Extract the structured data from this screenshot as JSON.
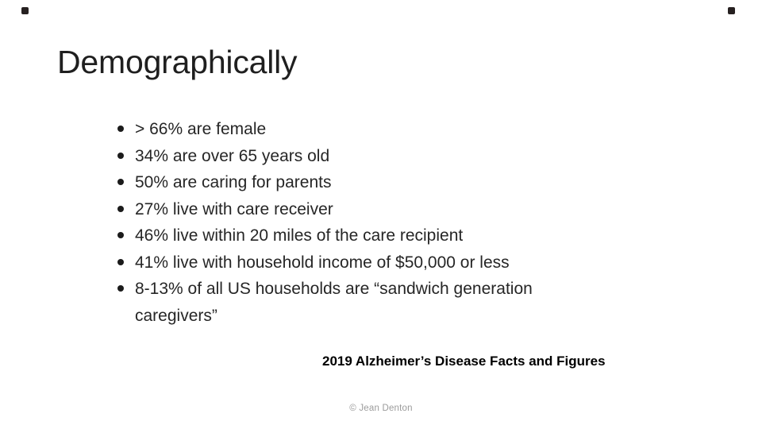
{
  "slide": {
    "title": "Demographically",
    "bullets": [
      "> 66% are female",
      "34% are over 65 years old",
      "50% are caring for parents",
      "27% live with care receiver",
      "46% live within 20 miles of the care recipient",
      "41% live with household income of $50,000 or less",
      "8-13% of all US households are “sandwich generation"
    ],
    "bullet_continuation": "caregivers”",
    "citation": "2019 Alzheimer’s Disease Facts and Figures",
    "footer": "© Jean Denton"
  },
  "colors": {
    "background": "#ffffff",
    "text": "#262626",
    "title": "#1f1f1f",
    "citation": "#000000",
    "footer_muted": "#9b9b9b",
    "corner_mark": "#262020"
  }
}
